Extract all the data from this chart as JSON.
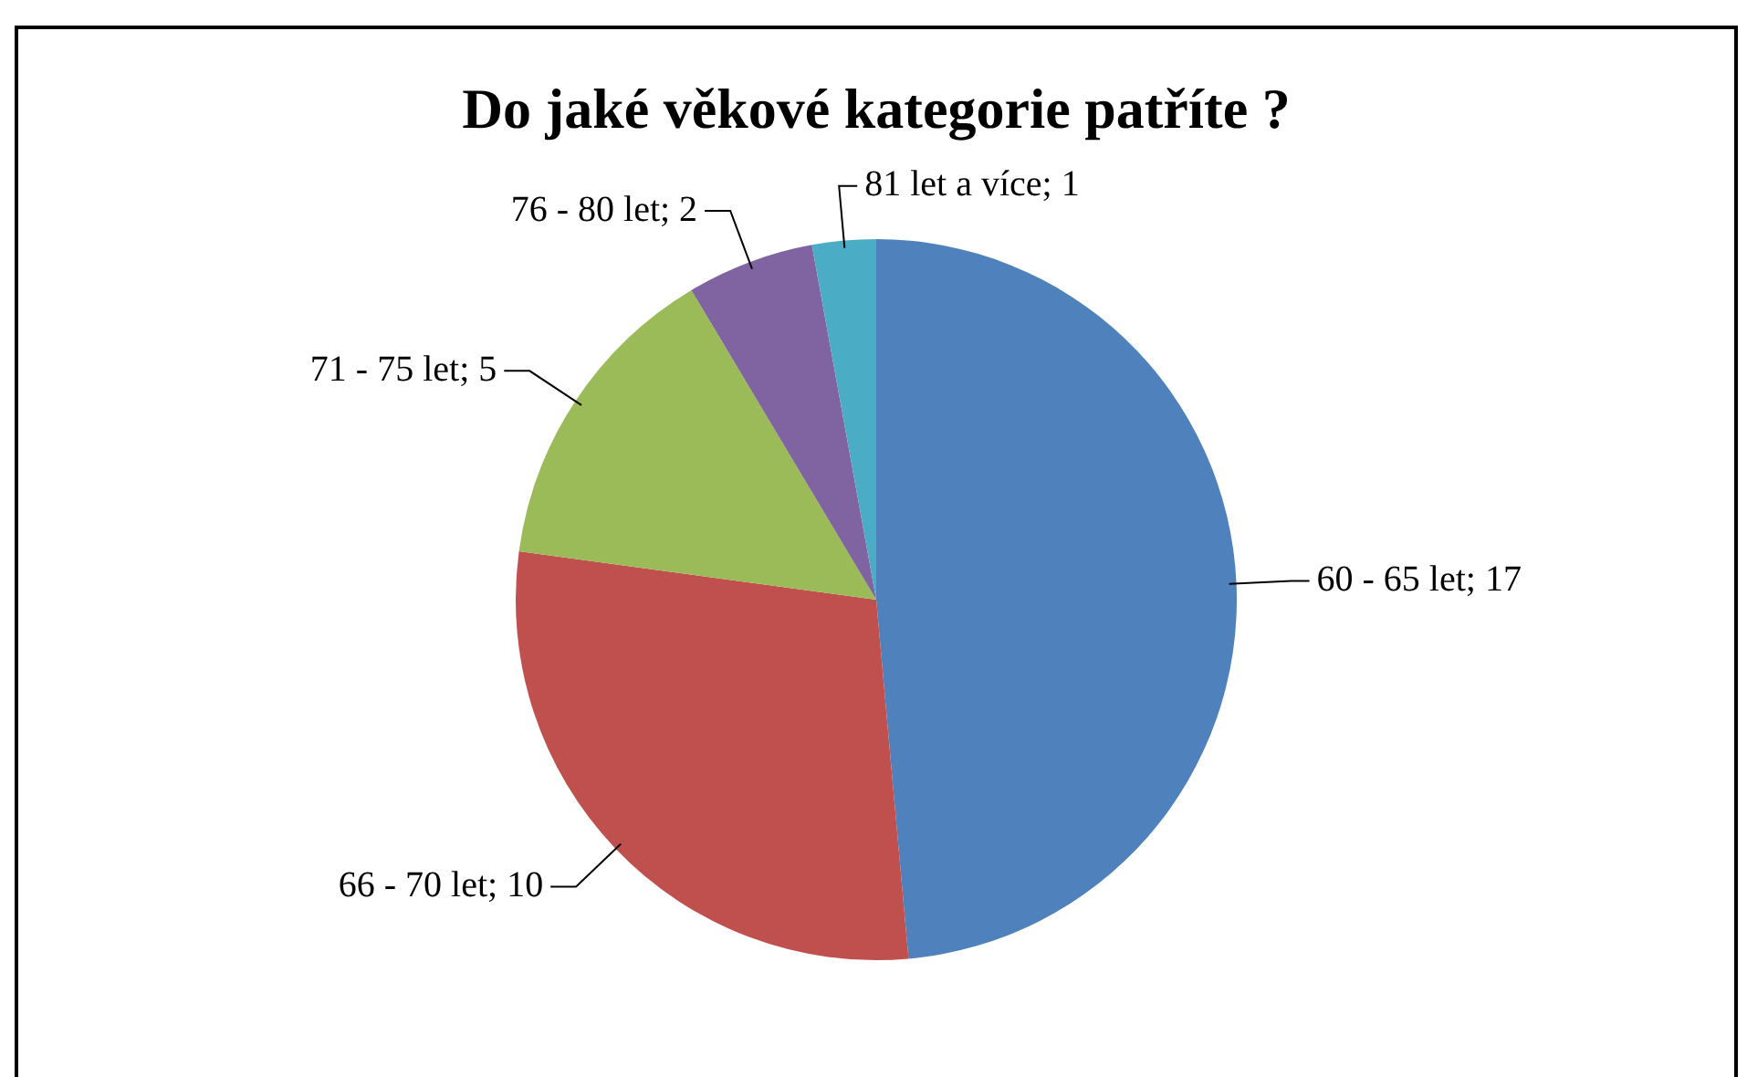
{
  "chart_data": {
    "type": "pie",
    "title": "Do jaké věkové kategorie patříte ?",
    "categories": [
      "60 - 65 let",
      "66 - 70 let",
      "71 - 75 let",
      "76 - 80 let",
      "81 let a více"
    ],
    "values": [
      17,
      10,
      5,
      2,
      1
    ],
    "colors": [
      "#4f81bd",
      "#c0504d",
      "#9bbb59",
      "#8064a2",
      "#4bacc6"
    ],
    "value_labels": [
      "; 17",
      "; 10",
      "; 5",
      "; 2",
      "; 1"
    ]
  }
}
